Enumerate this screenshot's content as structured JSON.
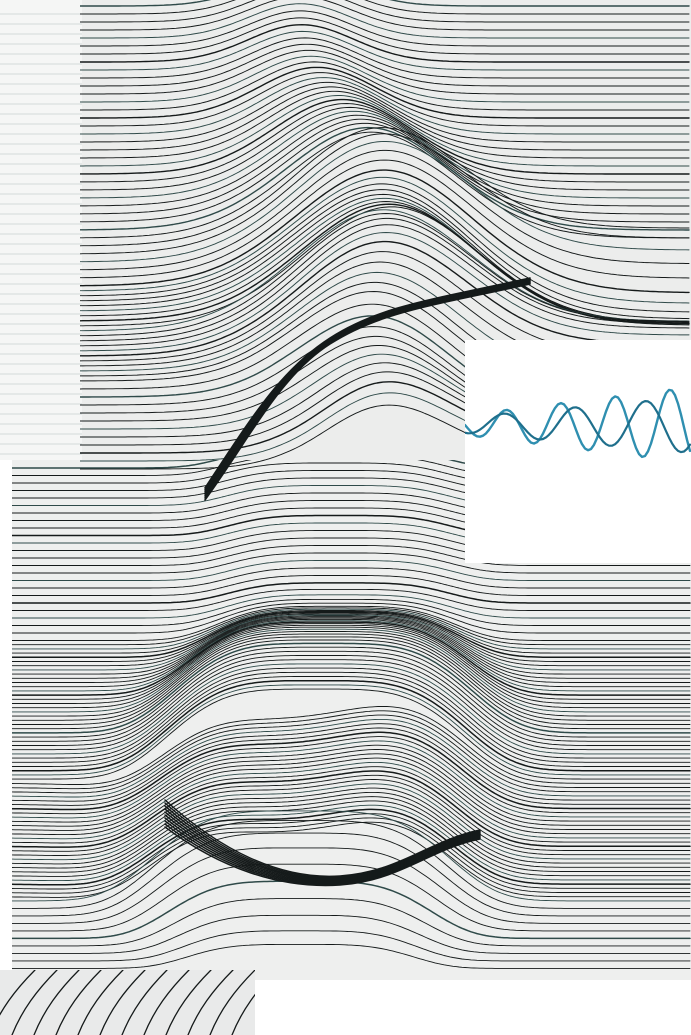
{
  "artwork": {
    "subject": "collage-line-drawing",
    "palette": {
      "paper": "#ffffff",
      "paper_gray": "#ecedec",
      "paper_light": "#f3f4f3",
      "ink": "#151a1a",
      "ink_teal": "#2f4a49",
      "wave_teal": "#2f8fb0",
      "wave_dark": "#1f6f8c"
    }
  }
}
